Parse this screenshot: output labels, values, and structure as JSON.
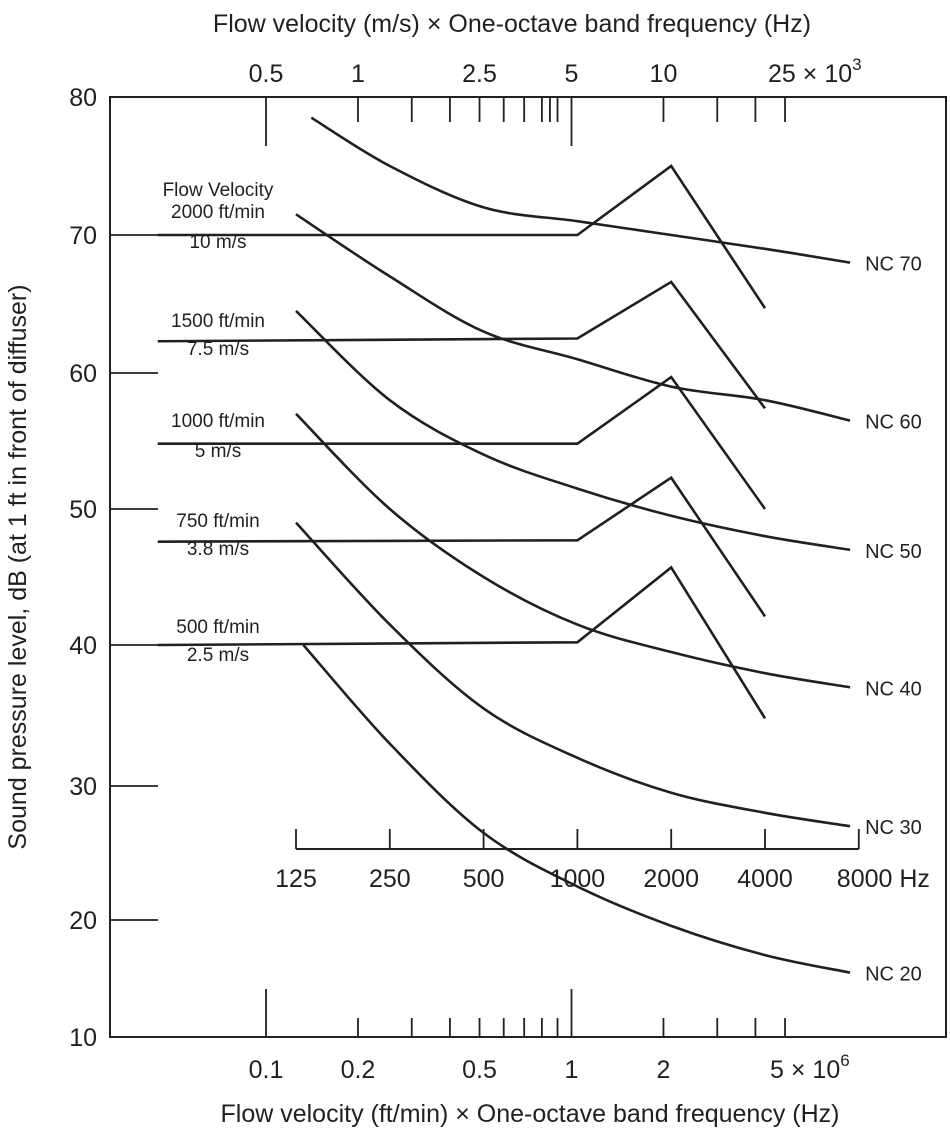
{
  "chart_data": {
    "type": "line",
    "title": "",
    "top_axis": {
      "label": "Flow velocity (m/s) × One-octave band frequency (Hz)",
      "scale": "log",
      "tick_labels": [
        {
          "v": 0.5,
          "t": "0.5"
        },
        {
          "v": 1,
          "t": "1"
        },
        {
          "v": 2.5,
          "t": "2.5"
        },
        {
          "v": 5,
          "t": "5"
        },
        {
          "v": 10,
          "t": "10"
        },
        {
          "v": 25,
          "t": "25 × 10"
        }
      ],
      "multiplier_exponent": "3",
      "major_ticks": [
        0.5,
        5
      ],
      "minor_ticks": [
        1,
        1.5,
        2,
        2.5,
        3,
        3.5,
        4,
        4.25,
        4.5,
        10,
        15,
        20,
        25
      ]
    },
    "bottom_axis": {
      "label": "Flow velocity (ft/min) × One-octave band frequency (Hz)",
      "scale": "log",
      "tick_labels": [
        {
          "v": 0.1,
          "t": "0.1"
        },
        {
          "v": 0.2,
          "t": "0.2"
        },
        {
          "v": 0.5,
          "t": "0.5"
        },
        {
          "v": 1,
          "t": "1"
        },
        {
          "v": 2,
          "t": "2"
        },
        {
          "v": 5,
          "t": "5 × 10"
        }
      ],
      "multiplier_exponent": "6",
      "major_ticks": [
        0.1,
        1
      ],
      "minor_ticks": [
        0.2,
        0.3,
        0.4,
        0.5,
        0.6,
        0.7,
        0.8,
        0.9,
        2,
        3,
        4,
        5
      ]
    },
    "frequency_axis": {
      "scale": "log2",
      "ticks": [
        125,
        250,
        500,
        1000,
        2000,
        4000,
        8000
      ],
      "tick_labels": [
        "125",
        "250",
        "500",
        "1000",
        "2000",
        "4000",
        "8000 Hz"
      ]
    },
    "y_axis": {
      "label": "Sound pressure level, dB (at 1 ft in front of diffuser)",
      "ylim": [
        10,
        80
      ],
      "ticks": [
        80,
        70,
        60,
        50,
        40,
        30,
        20,
        10
      ]
    },
    "grid": false,
    "nc_curves": [
      {
        "name": "NC 70",
        "freq": [
          140,
          250,
          500,
          1000,
          2000,
          4000,
          7500
        ],
        "values": [
          78.5,
          75,
          72,
          71,
          70,
          69,
          68
        ]
      },
      {
        "name": "NC 60",
        "freq": [
          125,
          250,
          500,
          1000,
          2000,
          4000,
          7500
        ],
        "values": [
          71.5,
          67,
          63,
          61,
          59,
          58,
          56.5
        ]
      },
      {
        "name": "NC 50",
        "freq": [
          125,
          250,
          500,
          1000,
          2000,
          4000,
          7500
        ],
        "values": [
          64.5,
          58,
          54,
          51.5,
          49.5,
          48,
          47
        ]
      },
      {
        "name": "NC 40",
        "freq": [
          125,
          250,
          500,
          1000,
          2000,
          4000,
          7500
        ],
        "values": [
          57,
          50,
          45,
          41.5,
          39.5,
          38,
          37
        ]
      },
      {
        "name": "NC 30",
        "freq": [
          125,
          250,
          500,
          1000,
          2000,
          4000,
          7500
        ],
        "values": [
          49,
          41.5,
          35.5,
          32,
          29.5,
          28,
          27
        ]
      },
      {
        "name": "NC 20",
        "freq": [
          132,
          250,
          500,
          1000,
          2000,
          4000,
          7500
        ],
        "values": [
          40,
          33,
          26.5,
          22.5,
          19.5,
          17,
          15.5
        ]
      }
    ],
    "diffuser_legend_title": "Flow Velocity",
    "diffuser_series": [
      {
        "label1": "2000 ft/min",
        "label2": "10 m/s",
        "freq": [
          45,
          1000,
          2000,
          4000
        ],
        "values": [
          70,
          70,
          75,
          64.7
        ]
      },
      {
        "label1": "1500 ft/min",
        "label2": "7.5 m/s",
        "freq": [
          45,
          1000,
          2000,
          4000
        ],
        "values": [
          62.3,
          62.5,
          66.6,
          57.4
        ]
      },
      {
        "label1": "1000 ft/min",
        "label2": "5 m/s",
        "freq": [
          45,
          1000,
          2000,
          4000
        ],
        "values": [
          54.8,
          54.8,
          59.7,
          50
        ]
      },
      {
        "label1": "750 ft/min",
        "label2": "3.8 m/s",
        "freq": [
          45,
          1000,
          2000,
          4000
        ],
        "values": [
          47.6,
          47.7,
          52.3,
          42.1
        ]
      },
      {
        "label1": "500 ft/min",
        "label2": "2.5 m/s",
        "freq": [
          45,
          1000,
          2000,
          4000
        ],
        "values": [
          40,
          40.2,
          45.7,
          34.8
        ]
      }
    ]
  }
}
